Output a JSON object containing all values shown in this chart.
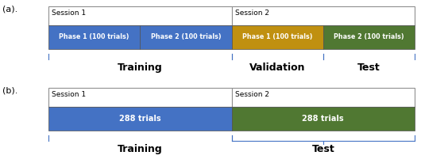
{
  "fig_width": 5.3,
  "fig_height": 2.06,
  "dpi": 100,
  "label_a": "(a).",
  "label_b": "(b).",
  "session1_label": "Session 1",
  "session2_label": "Session 2",
  "phase1_blue_label": "Phase 1 (100 trials)",
  "phase2_blue_label": "Phase 2 (100 trials)",
  "phase1_gold_label": "Phase 1 (100 trials)",
  "phase2_green_label": "Phase 2 (100 trials)",
  "trials_blue_label": "288 trials",
  "trials_green_label": "288 trials",
  "training_label": "Training",
  "validation_label": "Validation",
  "test_label_a": "Test",
  "test_label_b": "Test",
  "training_label_b": "Training",
  "color_blue": "#4472C4",
  "color_gold": "#C09010",
  "color_green": "#507832",
  "color_border": "#505050",
  "color_white": "#FFFFFF",
  "color_black": "#000000",
  "color_session_bg": "#FFFFFF",
  "color_bracket": "#4472C4",
  "session_border": "#909090"
}
